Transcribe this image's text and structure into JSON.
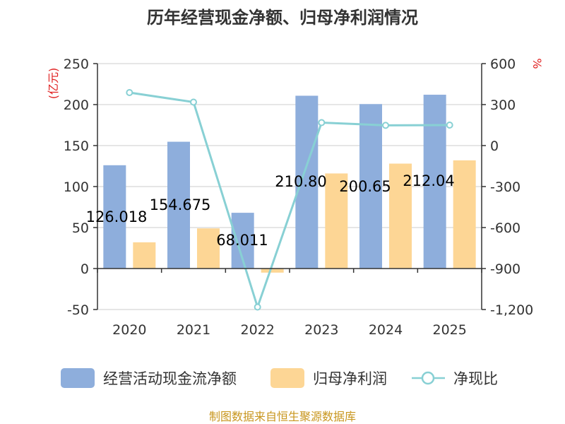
{
  "chart_data": {
    "type": "bar",
    "title": "历年经营现金净额、归母净利润情况",
    "categories": [
      "2020",
      "2021",
      "2022",
      "2023",
      "2024",
      "2025"
    ],
    "series": [
      {
        "name": "经营活动现金流净额",
        "type": "bar",
        "axis": "left",
        "color": "#8eaedc",
        "values": [
          126.018,
          154.675,
          68.011,
          210.8,
          200.65,
          212.04
        ]
      },
      {
        "name": "归母净利润",
        "type": "bar",
        "axis": "left",
        "color": "#fdd695",
        "values": [
          32,
          49,
          -5,
          116,
          128,
          132
        ]
      },
      {
        "name": "净现比",
        "type": "line",
        "axis": "right",
        "color": "#88d0d4",
        "values": [
          388,
          318,
          -1182,
          168,
          148,
          150
        ]
      }
    ],
    "data_labels": [
      "126.018",
      "154.675",
      "68.011",
      "210.80",
      "200.65",
      "212.04"
    ],
    "ylabel_left": "(亿元)",
    "ylabel_right": "%",
    "ylim_left": [
      -50,
      250
    ],
    "ylim_right": [
      -1200,
      600
    ],
    "yticks_left": [
      "250",
      "200",
      "150",
      "100",
      "50",
      "0",
      "-50"
    ],
    "yticks_right": [
      "600",
      "300",
      "0",
      "-300",
      "-600",
      "-900",
      "-1,200"
    ],
    "grid": true,
    "legend_position": "bottom",
    "source": "制图数据来自恒生聚源数据库"
  }
}
